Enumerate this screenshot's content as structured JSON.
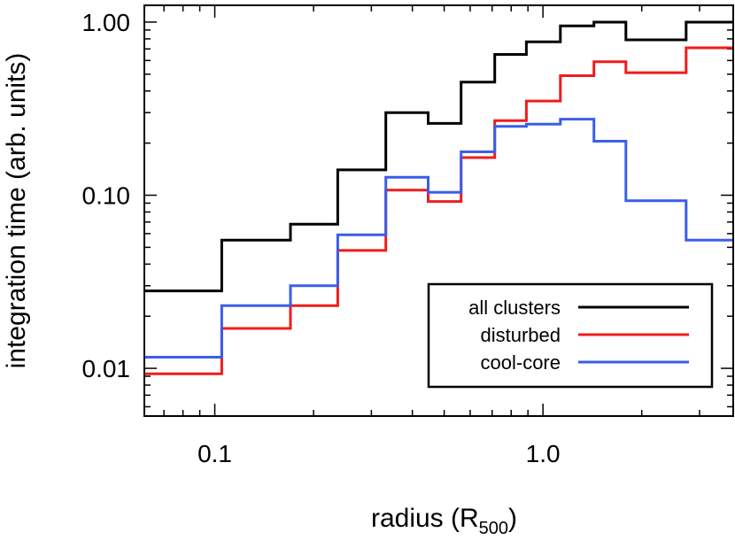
{
  "chart_data": {
    "type": "line",
    "drawstyle": "steps",
    "xscale": "log",
    "yscale": "log",
    "xlim": [
      0.061,
      3.8
    ],
    "ylim": [
      0.0053,
      1.25
    ],
    "xlabel": "radius (R",
    "xlabel_sub": "500",
    "xlabel_close": ")",
    "ylabel": "integration time (arb. units)",
    "xticks": [
      {
        "value": 0.1,
        "label": "0.1"
      },
      {
        "value": 1.0,
        "label": "1.0"
      }
    ],
    "yticks": [
      {
        "value": 0.01,
        "label": "0.01"
      },
      {
        "value": 0.1,
        "label": "0.10"
      },
      {
        "value": 1.0,
        "label": "1.00"
      }
    ],
    "bin_edges": [
      0.061,
      0.105,
      0.17,
      0.237,
      0.332,
      0.447,
      0.563,
      0.713,
      0.89,
      1.13,
      1.43,
      1.79,
      2.73,
      3.8
    ],
    "legend_position": "bottom-right",
    "series": [
      {
        "name": "all clusters",
        "color": "#000000",
        "values": [
          0.028,
          0.055,
          0.068,
          0.14,
          0.3,
          0.26,
          0.45,
          0.65,
          0.77,
          0.95,
          1.0,
          0.79,
          1.0
        ]
      },
      {
        "name": "disturbed",
        "color": "#ee1c1c",
        "values": [
          0.0093,
          0.017,
          0.023,
          0.048,
          0.107,
          0.092,
          0.165,
          0.27,
          0.35,
          0.49,
          0.59,
          0.51,
          0.71
        ]
      },
      {
        "name": "cool-core",
        "color": "#3a5ee8",
        "values": [
          0.0116,
          0.023,
          0.03,
          0.059,
          0.127,
          0.104,
          0.178,
          0.25,
          0.257,
          0.275,
          0.205,
          0.093,
          0.055
        ]
      }
    ]
  }
}
